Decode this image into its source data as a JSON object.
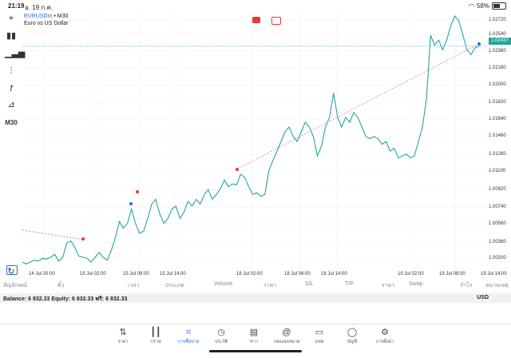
{
  "status_bar": {
    "time": "21:19",
    "date": "อ. 19 ก.ค.",
    "battery": "58%"
  },
  "symbol": {
    "name": "EURUSDm",
    "timeframe": "M30",
    "description": "Euro vs US Dollar"
  },
  "toolbar": {
    "timeframe_label": "M30"
  },
  "price_axis": {
    "labels": [
      "1.02720",
      "1.02540",
      "1.02360",
      "1.02180",
      "1.02000",
      "1.01820",
      "1.01640",
      "1.01460",
      "1.01280",
      "1.01100",
      "1.00920",
      "1.00740",
      "1.00560",
      "1.00380",
      "1.00200"
    ],
    "current": "1.02437"
  },
  "time_axis": {
    "labels": [
      "14 Jul 20:00",
      "15 Jul 02:00",
      "15 Jul 08:00",
      "15 Jul 14:00",
      "18 Jul 02:00",
      "18 Jul 08:00",
      "18 Jul 14:00",
      "19 Jul 02:00",
      "19 Jul 08:00",
      "19 Jul 14:00"
    ]
  },
  "trade_columns": [
    "สัญลักษณ์",
    "ตั๋ว",
    "เวลา",
    "ประเภท",
    "Volume",
    "ราคา",
    "S/L",
    "T/P",
    "ราคา",
    "Swap",
    "กำไร",
    "หมายเหตุ"
  ],
  "account": {
    "balance": "Balance: 6 832.33  Equity: 6 832.33  ฟรี: 6 832.33",
    "currency": "USD"
  },
  "nav": [
    {
      "label": "ราคา",
      "icon": "arrows-icon"
    },
    {
      "label": "กราฟ",
      "icon": "candles-icon"
    },
    {
      "label": "การซื้อขาย",
      "icon": "trade-chart-icon",
      "active": true
    },
    {
      "label": "ประวัติ",
      "icon": "history-icon"
    },
    {
      "label": "ข่าว",
      "icon": "news-icon"
    },
    {
      "label": "กล่องจดหมาย",
      "icon": "mail-icon"
    },
    {
      "label": "แชท",
      "icon": "chat-icon"
    },
    {
      "label": "บัญชี",
      "icon": "account-icon"
    },
    {
      "label": "การตั้งค่า",
      "icon": "settings-icon"
    }
  ],
  "colors": {
    "line": "#26a69a",
    "accent": "#1e6ed6",
    "buy": "#1e6ed6",
    "sell": "#e53935"
  },
  "chart_data": {
    "type": "line",
    "series": [
      {
        "values": [
          1.002,
          1.0018,
          1.002,
          1.0022,
          1.0021,
          1.0024,
          1.0023,
          1.0025,
          1.0028,
          1.0021,
          1.0025,
          1.004,
          1.0042,
          1.0035,
          1.0026,
          1.0025,
          1.0024,
          1.002,
          1.0025,
          1.003,
          1.0025,
          1.0022,
          1.0032,
          1.0045,
          1.0062,
          1.0055,
          1.006,
          1.0075,
          1.006,
          1.005,
          1.0052,
          1.0065,
          1.008,
          1.0085,
          1.007,
          1.006,
          1.0065,
          1.0075,
          1.0078,
          1.0065,
          1.0072,
          1.0083,
          1.0078,
          1.0085,
          1.008,
          1.009,
          1.0095,
          1.0085,
          1.009,
          1.0096,
          1.0105,
          1.0098,
          1.0101,
          1.01,
          1.0111,
          1.0108,
          1.0098,
          1.009,
          1.0092,
          1.0088,
          1.009,
          1.0115,
          1.0125,
          1.0135,
          1.0145,
          1.0155,
          1.016,
          1.015,
          1.0145,
          1.0155,
          1.0165,
          1.016,
          1.015,
          1.013,
          1.014,
          1.016,
          1.017,
          1.0195,
          1.017,
          1.016,
          1.017,
          1.0165,
          1.0175,
          1.017,
          1.016,
          1.015,
          1.0148,
          1.015,
          1.0148,
          1.0142,
          1.0145,
          1.0135,
          1.0138,
          1.0128,
          1.013,
          1.0132,
          1.0128,
          1.013,
          1.0145,
          1.016,
          1.019,
          1.0255,
          1.0245,
          1.025,
          1.024,
          1.025,
          1.0265,
          1.0275,
          1.027,
          1.0255,
          1.024,
          1.0235,
          1.0242,
          1.02437
        ]
      }
    ],
    "y_range": [
      1.001,
      1.028
    ],
    "current_price": 1.02437
  }
}
